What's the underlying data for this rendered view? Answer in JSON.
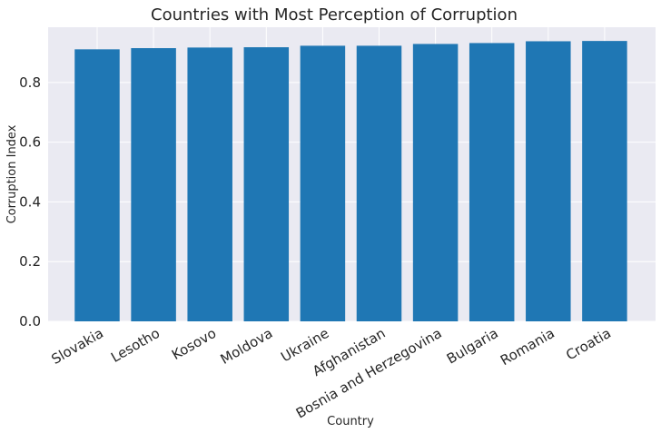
{
  "chart_data": {
    "type": "bar",
    "title": "Countries with Most Perception of Corruption",
    "xlabel": "Country",
    "ylabel": "Corruption Index",
    "categories": [
      "Slovakia",
      "Lesotho",
      "Kosovo",
      "Moldova",
      "Ukraine",
      "Afghanistan",
      "Bosnia and Herzegovina",
      "Bulgaria",
      "Romania",
      "Croatia"
    ],
    "values": [
      0.911,
      0.915,
      0.917,
      0.918,
      0.923,
      0.923,
      0.929,
      0.932,
      0.938,
      0.939
    ],
    "y_ticks": [
      "0.0",
      "0.2",
      "0.4",
      "0.6",
      "0.8"
    ],
    "ylim": [
      0,
      0.985
    ],
    "grid": true,
    "legend": "none",
    "colors": {
      "bar": "#1f77b4",
      "plot_background": "#eaeaf2",
      "grid": "#ffffff",
      "text": "#262626"
    }
  }
}
